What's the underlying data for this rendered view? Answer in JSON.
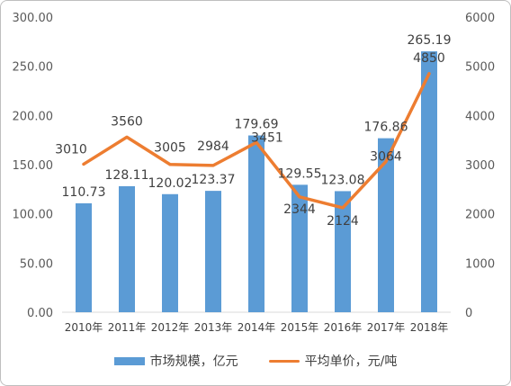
{
  "chart_data": {
    "type": "bar",
    "categories": [
      "2010年",
      "2011年",
      "2012年",
      "2013年",
      "2014年",
      "2015年",
      "2016年",
      "2017年",
      "2018年"
    ],
    "series": [
      {
        "name": "市场规模，亿元",
        "type": "bar",
        "axis": "left",
        "color": "#5b9bd5",
        "values": [
          110.73,
          128.11,
          120.02,
          123.37,
          179.69,
          129.55,
          123.08,
          176.86,
          265.19
        ],
        "labels": [
          "110.73",
          "128.11",
          "120.02",
          "123.37",
          "179.69",
          "129.55",
          "123.08",
          "176.86",
          "265.19"
        ]
      },
      {
        "name": "平均单价，元/吨",
        "type": "line",
        "axis": "right",
        "color": "#ed7d31",
        "values": [
          3010,
          3560,
          3005,
          2984,
          3451,
          2344,
          2124,
          3064,
          4850
        ],
        "labels": [
          "3010",
          "3560",
          "3005",
          "2984",
          "3451",
          "2344",
          "2124",
          "3064",
          "4850"
        ]
      }
    ],
    "y_left": {
      "min": 0,
      "max": 300,
      "ticks": [
        "0.00",
        "50.00",
        "100.00",
        "150.00",
        "200.00",
        "250.00",
        "300.00"
      ]
    },
    "y_right": {
      "min": 0,
      "max": 6000,
      "ticks": [
        "0",
        "1000",
        "2000",
        "3000",
        "4000",
        "5000",
        "6000"
      ]
    },
    "grid": false,
    "legend_position": "bottom"
  }
}
